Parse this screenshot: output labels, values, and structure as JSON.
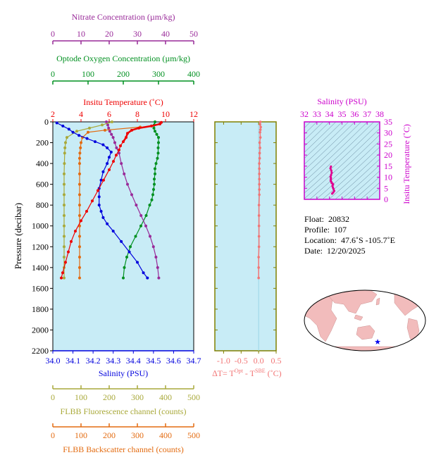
{
  "colors": {
    "plot_bg": "#c8ecf6",
    "temperature": "#ee0000",
    "salinity": "#0000dd",
    "oxygen": "#009020",
    "nitrate": "#992a99",
    "fluorescence": "#a9a93a",
    "backscatter": "#e36b10",
    "delta_t": "#f27575",
    "ts_curve": "#e00090",
    "ts_axis": "#cc00cc",
    "land": "#f2bcbc",
    "ocean": "#ffffff",
    "axis": "#000000",
    "frame_olive": "#808000"
  },
  "meta": {
    "float_label": "Float:",
    "float_value": "20832",
    "profile_label": "Profile:",
    "profile_value": "107",
    "location_label": "Location:",
    "location_value": "47.6˚S  -105.7˚E",
    "date_label": "Date:",
    "date_value": "12/20/2025"
  },
  "chart_data": [
    {
      "type": "line",
      "name": "main-profile",
      "ylabel": "Pressure (decibar)",
      "ylim": [
        0,
        2200
      ],
      "yticks": [
        "0",
        "200",
        "400",
        "600",
        "800",
        "1000",
        "1200",
        "1400",
        "1600",
        "1800",
        "2000",
        "2200"
      ],
      "yinverted": true,
      "axes": {
        "temperature": {
          "label": "Insitu Temperature (˚C)",
          "range": [
            2,
            12
          ],
          "ticks": [
            "2",
            "4",
            "6",
            "8",
            "10",
            "12"
          ]
        },
        "salinity": {
          "label": "Salinity (PSU)",
          "range": [
            34.0,
            34.7
          ],
          "ticks": [
            "34.0",
            "34.1",
            "34.2",
            "34.3",
            "34.4",
            "34.5",
            "34.6",
            "34.7"
          ]
        },
        "oxygen": {
          "label": "Optode Oxygen Concentration (µm/kg)",
          "range": [
            0,
            400
          ],
          "ticks": [
            "0",
            "100",
            "200",
            "300",
            "400"
          ]
        },
        "nitrate": {
          "label": "Nitrate Concentration (µm/kg)",
          "range": [
            0,
            50
          ],
          "ticks": [
            "0",
            "10",
            "20",
            "30",
            "40",
            "50"
          ]
        },
        "fluorescence": {
          "label": "FLBB Fluorescence channel (counts)",
          "range": [
            0,
            500
          ],
          "ticks": [
            "0",
            "100",
            "200",
            "300",
            "400",
            "500"
          ]
        },
        "backscatter": {
          "label": "FLBB Backscatter channel (counts)",
          "range": [
            0,
            500
          ],
          "ticks": [
            "0",
            "100",
            "200",
            "300",
            "400",
            "500"
          ]
        }
      },
      "series": [
        {
          "key": "temperature",
          "points": [
            [
              9.7,
              5
            ],
            [
              9.6,
              20
            ],
            [
              9.0,
              40
            ],
            [
              8.1,
              60
            ],
            [
              7.6,
              80
            ],
            [
              7.3,
              110
            ],
            [
              7.2,
              150
            ],
            [
              7.0,
              190
            ],
            [
              6.8,
              230
            ],
            [
              6.7,
              270
            ],
            [
              6.5,
              320
            ],
            [
              6.3,
              380
            ],
            [
              6.0,
              460
            ],
            [
              5.6,
              560
            ],
            [
              5.2,
              660
            ],
            [
              4.8,
              760
            ],
            [
              4.4,
              860
            ],
            [
              4.0,
              950
            ],
            [
              3.6,
              1050
            ],
            [
              3.3,
              1150
            ],
            [
              3.1,
              1250
            ],
            [
              2.9,
              1350
            ],
            [
              2.7,
              1450
            ],
            [
              2.6,
              1500
            ]
          ]
        },
        {
          "key": "salinity",
          "points": [
            [
              34.02,
              10
            ],
            [
              34.05,
              40
            ],
            [
              34.08,
              70
            ],
            [
              34.1,
              100
            ],
            [
              34.13,
              130
            ],
            [
              34.17,
              160
            ],
            [
              34.21,
              190
            ],
            [
              34.25,
              220
            ],
            [
              34.27,
              250
            ],
            [
              34.29,
              290
            ],
            [
              34.28,
              340
            ],
            [
              34.27,
              400
            ],
            [
              34.25,
              480
            ],
            [
              34.24,
              560
            ],
            [
              34.23,
              640
            ],
            [
              34.23,
              720
            ],
            [
              34.23,
              800
            ],
            [
              34.24,
              860
            ],
            [
              34.25,
              920
            ],
            [
              34.27,
              980
            ],
            [
              34.3,
              1050
            ],
            [
              34.34,
              1150
            ],
            [
              34.38,
              1250
            ],
            [
              34.42,
              1350
            ],
            [
              34.45,
              1450
            ],
            [
              34.47,
              1500
            ]
          ]
        },
        {
          "key": "oxygen",
          "points": [
            [
              290,
              0
            ],
            [
              288,
              30
            ],
            [
              287,
              60
            ],
            [
              290,
              90
            ],
            [
              295,
              120
            ],
            [
              300,
              150
            ],
            [
              300,
              200
            ],
            [
              299,
              250
            ],
            [
              299,
              300
            ],
            [
              297,
              350
            ],
            [
              293,
              400
            ],
            [
              290,
              450
            ],
            [
              290,
              500
            ],
            [
              288,
              550
            ],
            [
              288,
              600
            ],
            [
              286,
              650
            ],
            [
              284,
              700
            ],
            [
              281,
              750
            ],
            [
              275,
              800
            ],
            [
              265,
              900
            ],
            [
              250,
              1000
            ],
            [
              235,
              1100
            ],
            [
              220,
              1200
            ],
            [
              210,
              1300
            ],
            [
              203,
              1400
            ],
            [
              200,
              1500
            ]
          ]
        },
        {
          "key": "nitrate",
          "points": [
            [
              19,
              0
            ],
            [
              19.5,
              30
            ],
            [
              19.8,
              60
            ],
            [
              20.2,
              90
            ],
            [
              20.8,
              120
            ],
            [
              21.4,
              150
            ],
            [
              22,
              200
            ],
            [
              22.6,
              250
            ],
            [
              23.5,
              300
            ],
            [
              24.3,
              400
            ],
            [
              25.3,
              500
            ],
            [
              26.5,
              600
            ],
            [
              28,
              700
            ],
            [
              29.6,
              800
            ],
            [
              31.3,
              900
            ],
            [
              33,
              1000
            ],
            [
              34.5,
              1100
            ],
            [
              35.7,
              1200
            ],
            [
              36.6,
              1300
            ],
            [
              37.2,
              1400
            ],
            [
              37.6,
              1500
            ]
          ]
        },
        {
          "key": "fluorescence",
          "points": [
            [
              210,
              0
            ],
            [
              175,
              30
            ],
            [
              130,
              60
            ],
            [
              85,
              90
            ],
            [
              50,
              150
            ],
            [
              45,
              200
            ],
            [
              43,
              250
            ],
            [
              42,
              300
            ],
            [
              41,
              400
            ],
            [
              40,
              500
            ],
            [
              40,
              600
            ],
            [
              40,
              700
            ],
            [
              40,
              800
            ],
            [
              40,
              900
            ],
            [
              40,
              1000
            ],
            [
              40,
              1100
            ],
            [
              40,
              1200
            ],
            [
              40,
              1300
            ],
            [
              40,
              1400
            ],
            [
              40,
              1500
            ]
          ]
        },
        {
          "key": "backscatter",
          "points": [
            [
              310,
              50
            ],
            [
              185,
              80
            ],
            [
              125,
              100
            ],
            [
              105,
              150
            ],
            [
              100,
              200
            ],
            [
              98,
              250
            ],
            [
              96,
              300
            ],
            [
              95,
              350
            ],
            [
              95,
              400
            ],
            [
              95,
              500
            ],
            [
              95,
              600
            ],
            [
              95,
              700
            ],
            [
              95,
              800
            ],
            [
              95,
              900
            ],
            [
              95,
              1000
            ],
            [
              95,
              1100
            ],
            [
              95,
              1200
            ],
            [
              95,
              1300
            ],
            [
              95,
              1400
            ],
            [
              95,
              1500
            ]
          ]
        }
      ]
    },
    {
      "type": "scatter",
      "name": "delta-t",
      "xlabel": "∆T= TOpt - TSBE (˚C)",
      "xlim": [
        -1.25,
        0.5
      ],
      "xticks": [
        "-1.0",
        "-0.5",
        "0.0",
        "0.5"
      ],
      "ylim": [
        0,
        2200
      ],
      "points": [
        [
          0.05,
          0
        ],
        [
          0.04,
          25
        ],
        [
          0.06,
          50
        ],
        [
          0.05,
          75
        ],
        [
          0.04,
          100
        ],
        [
          0.05,
          150
        ],
        [
          0.03,
          200
        ],
        [
          0.04,
          250
        ],
        [
          0.03,
          300
        ],
        [
          0.03,
          350
        ],
        [
          0.02,
          400
        ],
        [
          0.02,
          450
        ],
        [
          0.02,
          500
        ],
        [
          0.02,
          550
        ],
        [
          0.02,
          600
        ],
        [
          0.02,
          650
        ],
        [
          0.02,
          700
        ],
        [
          0.01,
          800
        ],
        [
          0.01,
          900
        ],
        [
          0.01,
          1000
        ],
        [
          0.01,
          1100
        ],
        [
          0.01,
          1200
        ],
        [
          0.0,
          1300
        ],
        [
          0.0,
          1400
        ],
        [
          0.0,
          1500
        ]
      ]
    },
    {
      "type": "line",
      "name": "ts-diagram",
      "title": "Salinity (PSU)",
      "xlim": [
        32,
        38
      ],
      "xticks": [
        "32",
        "33",
        "34",
        "35",
        "36",
        "37",
        "38"
      ],
      "ylabel": "Insitu Temperature (˚C)",
      "ylim": [
        0,
        35
      ],
      "yticks": [
        "0",
        "5",
        "10",
        "15",
        "20",
        "25",
        "30",
        "35"
      ],
      "points": [
        [
          34.22,
          2.6
        ],
        [
          34.3,
          3.1
        ],
        [
          34.38,
          3.8
        ],
        [
          34.33,
          4.6
        ],
        [
          34.28,
          5.3
        ],
        [
          34.24,
          6.1
        ],
        [
          34.29,
          6.7
        ],
        [
          34.25,
          7.1
        ],
        [
          34.18,
          7.4
        ],
        [
          34.15,
          7.9
        ],
        [
          34.1,
          8.4
        ],
        [
          34.11,
          9.0
        ],
        [
          34.12,
          9.6
        ],
        [
          34.09,
          10.2
        ],
        [
          34.13,
          11.0
        ],
        [
          34.18,
          12.0
        ],
        [
          34.15,
          13.0
        ],
        [
          34.08,
          14.0
        ],
        [
          34.12,
          14.8
        ]
      ]
    }
  ]
}
